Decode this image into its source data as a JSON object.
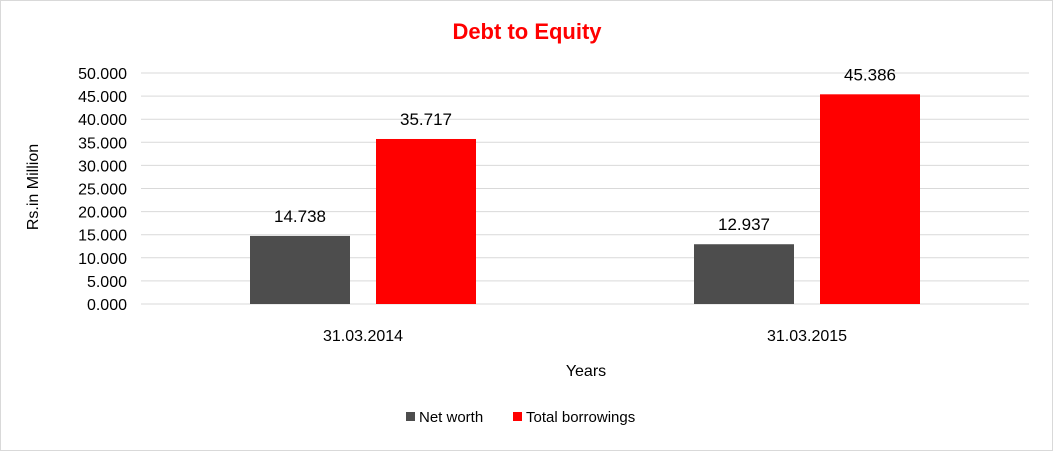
{
  "chart_data": {
    "type": "bar",
    "title": "Debt to Equity",
    "xlabel": "Years",
    "ylabel": "Rs.in Million",
    "categories": [
      "31.03.2014",
      "31.03.2015"
    ],
    "series": [
      {
        "name": "Net worth",
        "values": [
          14.738,
          12.937
        ],
        "labels": [
          "14.738",
          "12.937"
        ],
        "color": "#4d4d4d"
      },
      {
        "name": "Total borrowings",
        "values": [
          35.717,
          45.386
        ],
        "labels": [
          "35.717",
          "45.386"
        ],
        "color": "#ff0000"
      }
    ],
    "ylim": [
      0,
      50
    ],
    "yticks": [
      "0.000",
      "5.000",
      "10.000",
      "15.000",
      "20.000",
      "25.000",
      "30.000",
      "35.000",
      "40.000",
      "45.000",
      "50.000"
    ],
    "grid": true,
    "legend": "bottom",
    "title_color": "#ff0000"
  }
}
